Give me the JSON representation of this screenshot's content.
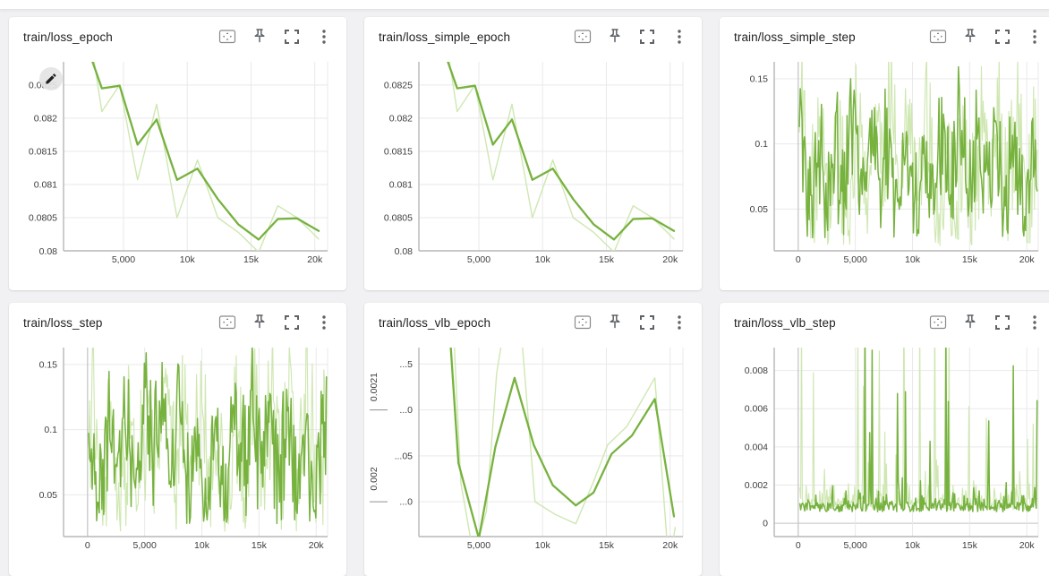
{
  "page": {
    "background": "#f1f1f3",
    "topbar_color": "#ffffff"
  },
  "palette": {
    "smoothed_line": "#77b23f",
    "raw_line": "#cfe7b2",
    "gridline": "#e9e9e9",
    "zero_line": "#c2c2c2",
    "axis_line": "#b7b7b7",
    "tick_text": "#3d3d3d",
    "title_text": "#1f1f1f",
    "icon": "#5f6368",
    "cursor_circle": "#e4e4e4",
    "cursor_pencil": "#1f1f1f"
  },
  "card_actions": [
    {
      "name": "fit-domain-to-data-icon",
      "label": "Fit domain to data"
    },
    {
      "name": "pin-icon",
      "label": "Pin card"
    },
    {
      "name": "fullscreen-icon",
      "label": "Maximize card"
    },
    {
      "name": "more-options-icon",
      "label": "More options"
    }
  ],
  "cards": [
    {
      "title": "train/loss_epoch"
    },
    {
      "title": "train/loss_simple_epoch"
    },
    {
      "title": "train/loss_simple_step"
    },
    {
      "title": "train/loss_step"
    },
    {
      "title": "train/loss_vlb_epoch"
    },
    {
      "title": "train/loss_vlb_step"
    }
  ],
  "chart_data": [
    {
      "type": "line",
      "title": "train/loss_epoch",
      "x_domain": [
        300,
        21000
      ],
      "y_domain": [
        0.08,
        0.08285
      ],
      "x_ticks": [
        {
          "v": 5000,
          "label": "5,000"
        },
        {
          "v": 10000,
          "label": "10k"
        },
        {
          "v": 15000,
          "label": "15k"
        },
        {
          "v": 20000,
          "label": "20k"
        }
      ],
      "y_ticks": [
        {
          "v": 0.0805,
          "label": "0.0805"
        },
        {
          "v": 0.081,
          "label": "0.081"
        },
        {
          "v": 0.0815,
          "label": "0.0815"
        },
        {
          "v": 0.082,
          "label": "0.082"
        },
        {
          "v": 0.0825,
          "label": "0.0825"
        }
      ],
      "y_edge_label": {
        "v": 0.08,
        "label": "0.08"
      },
      "edit_cursor": true,
      "series": [
        {
          "role": "raw",
          "kind": "points",
          "x": [
            2500,
            3300,
            4700,
            6100,
            7600,
            9200,
            10800,
            12400,
            14000,
            15600,
            17100,
            18600,
            20300
          ],
          "y": [
            0.0831,
            0.0821,
            0.0825,
            0.08107,
            0.08221,
            0.0805,
            0.08137,
            0.0805,
            0.08028,
            0.07998,
            0.08068,
            0.0805,
            0.08018
          ]
        },
        {
          "role": "smoothed",
          "kind": "points",
          "x": [
            2300,
            3300,
            4700,
            6100,
            7600,
            9200,
            10800,
            12400,
            14000,
            15600,
            17100,
            18600,
            20300
          ],
          "y": [
            0.083,
            0.08245,
            0.08249,
            0.0816,
            0.08198,
            0.08107,
            0.08124,
            0.08078,
            0.0804,
            0.08017,
            0.08048,
            0.08049,
            0.0803
          ]
        }
      ]
    },
    {
      "type": "line",
      "title": "train/loss_simple_epoch",
      "x_domain": [
        300,
        21000
      ],
      "y_domain": [
        0.08,
        0.08285
      ],
      "x_ticks": [
        {
          "v": 5000,
          "label": "5,000"
        },
        {
          "v": 10000,
          "label": "10k"
        },
        {
          "v": 15000,
          "label": "15k"
        },
        {
          "v": 20000,
          "label": "20k"
        }
      ],
      "y_ticks": [
        {
          "v": 0.0805,
          "label": "0.0805"
        },
        {
          "v": 0.081,
          "label": "0.081"
        },
        {
          "v": 0.0815,
          "label": "0.0815"
        },
        {
          "v": 0.082,
          "label": "0.082"
        },
        {
          "v": 0.0825,
          "label": "0.0825"
        }
      ],
      "y_edge_label": {
        "v": 0.08,
        "label": "0.08"
      },
      "series": [
        {
          "role": "raw",
          "kind": "points",
          "x": [
            2500,
            3300,
            4700,
            6100,
            7600,
            9200,
            10800,
            12400,
            14000,
            15600,
            17100,
            18600,
            20300
          ],
          "y": [
            0.0831,
            0.0821,
            0.0825,
            0.08107,
            0.08221,
            0.0805,
            0.08137,
            0.0805,
            0.08028,
            0.07998,
            0.08068,
            0.0805,
            0.08018
          ]
        },
        {
          "role": "smoothed",
          "kind": "points",
          "x": [
            2300,
            3300,
            4700,
            6100,
            7600,
            9200,
            10800,
            12400,
            14000,
            15600,
            17100,
            18600,
            20300
          ],
          "y": [
            0.083,
            0.08245,
            0.08249,
            0.0816,
            0.08198,
            0.08107,
            0.08124,
            0.08078,
            0.0804,
            0.08017,
            0.08048,
            0.08049,
            0.0803
          ]
        }
      ]
    },
    {
      "type": "line",
      "title": "train/loss_simple_step",
      "x_domain": [
        -2100,
        21000
      ],
      "y_domain": [
        0.018,
        0.163
      ],
      "zero_x": 0,
      "x_ticks": [
        {
          "v": 0,
          "label": "0"
        },
        {
          "v": 5000,
          "label": "5,000"
        },
        {
          "v": 10000,
          "label": "10k"
        },
        {
          "v": 15000,
          "label": "15k"
        },
        {
          "v": 20000,
          "label": "20k"
        }
      ],
      "y_ticks": [
        {
          "v": 0.05,
          "label": "0.05"
        },
        {
          "v": 0.1,
          "label": "0.1"
        },
        {
          "v": 0.15,
          "label": "0.15"
        }
      ],
      "series": [
        {
          "role": "raw",
          "kind": "noise",
          "n": 270,
          "x_start": 100,
          "x_end": 20900,
          "mean": 0.088,
          "amp": 0.078,
          "clip_min": 0.022,
          "seed": 101
        },
        {
          "role": "smoothed",
          "kind": "noise",
          "n": 270,
          "x_start": 100,
          "x_end": 20900,
          "mean": 0.084,
          "amp": 0.062,
          "clip_min": 0.028,
          "seed": 102
        }
      ]
    },
    {
      "type": "line",
      "title": "train/loss_step",
      "x_domain": [
        -2100,
        21000
      ],
      "y_domain": [
        0.018,
        0.163
      ],
      "zero_x": 0,
      "x_ticks": [
        {
          "v": 0,
          "label": "0"
        },
        {
          "v": 5000,
          "label": "5,000"
        },
        {
          "v": 10000,
          "label": "10k"
        },
        {
          "v": 15000,
          "label": "15k"
        },
        {
          "v": 20000,
          "label": "20k"
        }
      ],
      "y_ticks": [
        {
          "v": 0.05,
          "label": "0.05"
        },
        {
          "v": 0.1,
          "label": "0.1"
        },
        {
          "v": 0.15,
          "label": "0.15"
        }
      ],
      "series": [
        {
          "role": "raw",
          "kind": "noise",
          "n": 270,
          "x_start": 100,
          "x_end": 20900,
          "mean": 0.088,
          "amp": 0.078,
          "clip_min": 0.022,
          "seed": 201
        },
        {
          "role": "smoothed",
          "kind": "noise",
          "n": 270,
          "x_start": 100,
          "x_end": 20900,
          "mean": 0.084,
          "amp": 0.062,
          "clip_min": 0.028,
          "seed": 202
        }
      ]
    },
    {
      "type": "line",
      "title": "train/loss_vlb_epoch",
      "x_domain": [
        300,
        21000
      ],
      "y_domain": [
        0.001962,
        0.002168
      ],
      "x_ticks": [
        {
          "v": 5000,
          "label": "5,000"
        },
        {
          "v": 10000,
          "label": "10k"
        },
        {
          "v": 15000,
          "label": "15k"
        },
        {
          "v": 20000,
          "label": "20k"
        }
      ],
      "y_ticks": [
        {
          "v": 0.002,
          "label": "...0"
        },
        {
          "v": 0.00205,
          "label": "...05"
        },
        {
          "v": 0.0021,
          "label": "...0"
        },
        {
          "v": 0.00215,
          "label": "...5"
        }
      ],
      "y_dashes": [
        0.002,
        0.0021
      ],
      "y_rotated_groups": [
        {
          "label": "0.0021",
          "from": 0.0021,
          "to": 0.00215
        },
        {
          "label": "0.002",
          "from": 0.002,
          "to": 0.00205
        }
      ],
      "series": [
        {
          "role": "raw",
          "kind": "points",
          "x": [
            2900,
            3600,
            4600,
            5600,
            6400,
            7100,
            8300,
            9400,
            11000,
            12600,
            14000,
            15100,
            16600,
            18800,
            19900,
            20400
          ],
          "y": [
            0.00222,
            0.00202,
            0.00194,
            0.00199,
            0.00214,
            0.0022,
            0.00219,
            0.002,
            0.001986,
            0.001976,
            0.002022,
            0.002062,
            0.002082,
            0.002135,
            0.00193,
            0.001972
          ]
        },
        {
          "role": "smoothed",
          "kind": "points",
          "x": [
            2600,
            3400,
            5000,
            6300,
            7800,
            9300,
            10800,
            12600,
            14000,
            15400,
            17000,
            18800,
            20300
          ],
          "y": [
            0.00221,
            0.002042,
            0.00196,
            0.00206,
            0.002135,
            0.002062,
            0.002018,
            0.001996,
            0.00201,
            0.002052,
            0.002072,
            0.002112,
            0.001984
          ]
        }
      ]
    },
    {
      "type": "line",
      "title": "train/loss_vlb_step",
      "x_domain": [
        -2100,
        21000
      ],
      "y_domain": [
        -0.0007,
        0.0092
      ],
      "zero_x": 0,
      "zero_y": 0,
      "x_ticks": [
        {
          "v": 0,
          "label": "0"
        },
        {
          "v": 5000,
          "label": "5,000"
        },
        {
          "v": 10000,
          "label": "10k"
        },
        {
          "v": 15000,
          "label": "15k"
        },
        {
          "v": 20000,
          "label": "20k"
        }
      ],
      "y_ticks": [
        {
          "v": 0,
          "label": "0"
        },
        {
          "v": 0.002,
          "label": "0.002"
        },
        {
          "v": 0.004,
          "label": "0.004"
        },
        {
          "v": 0.006,
          "label": "0.006"
        },
        {
          "v": 0.008,
          "label": "0.008"
        }
      ],
      "series": [
        {
          "role": "raw",
          "kind": "spikes",
          "n": 300,
          "x_start": 150,
          "x_end": 20900,
          "base": 0.0007,
          "jitter": 0.0006,
          "spike_prob": 0.1,
          "spike_scale": 0.0105,
          "seed": 301
        },
        {
          "role": "smoothed",
          "kind": "spikes",
          "n": 300,
          "x_start": 150,
          "x_end": 20900,
          "base": 0.0006,
          "jitter": 0.0005,
          "spike_prob": 0.08,
          "spike_scale": 0.0095,
          "seed": 302
        }
      ]
    }
  ]
}
